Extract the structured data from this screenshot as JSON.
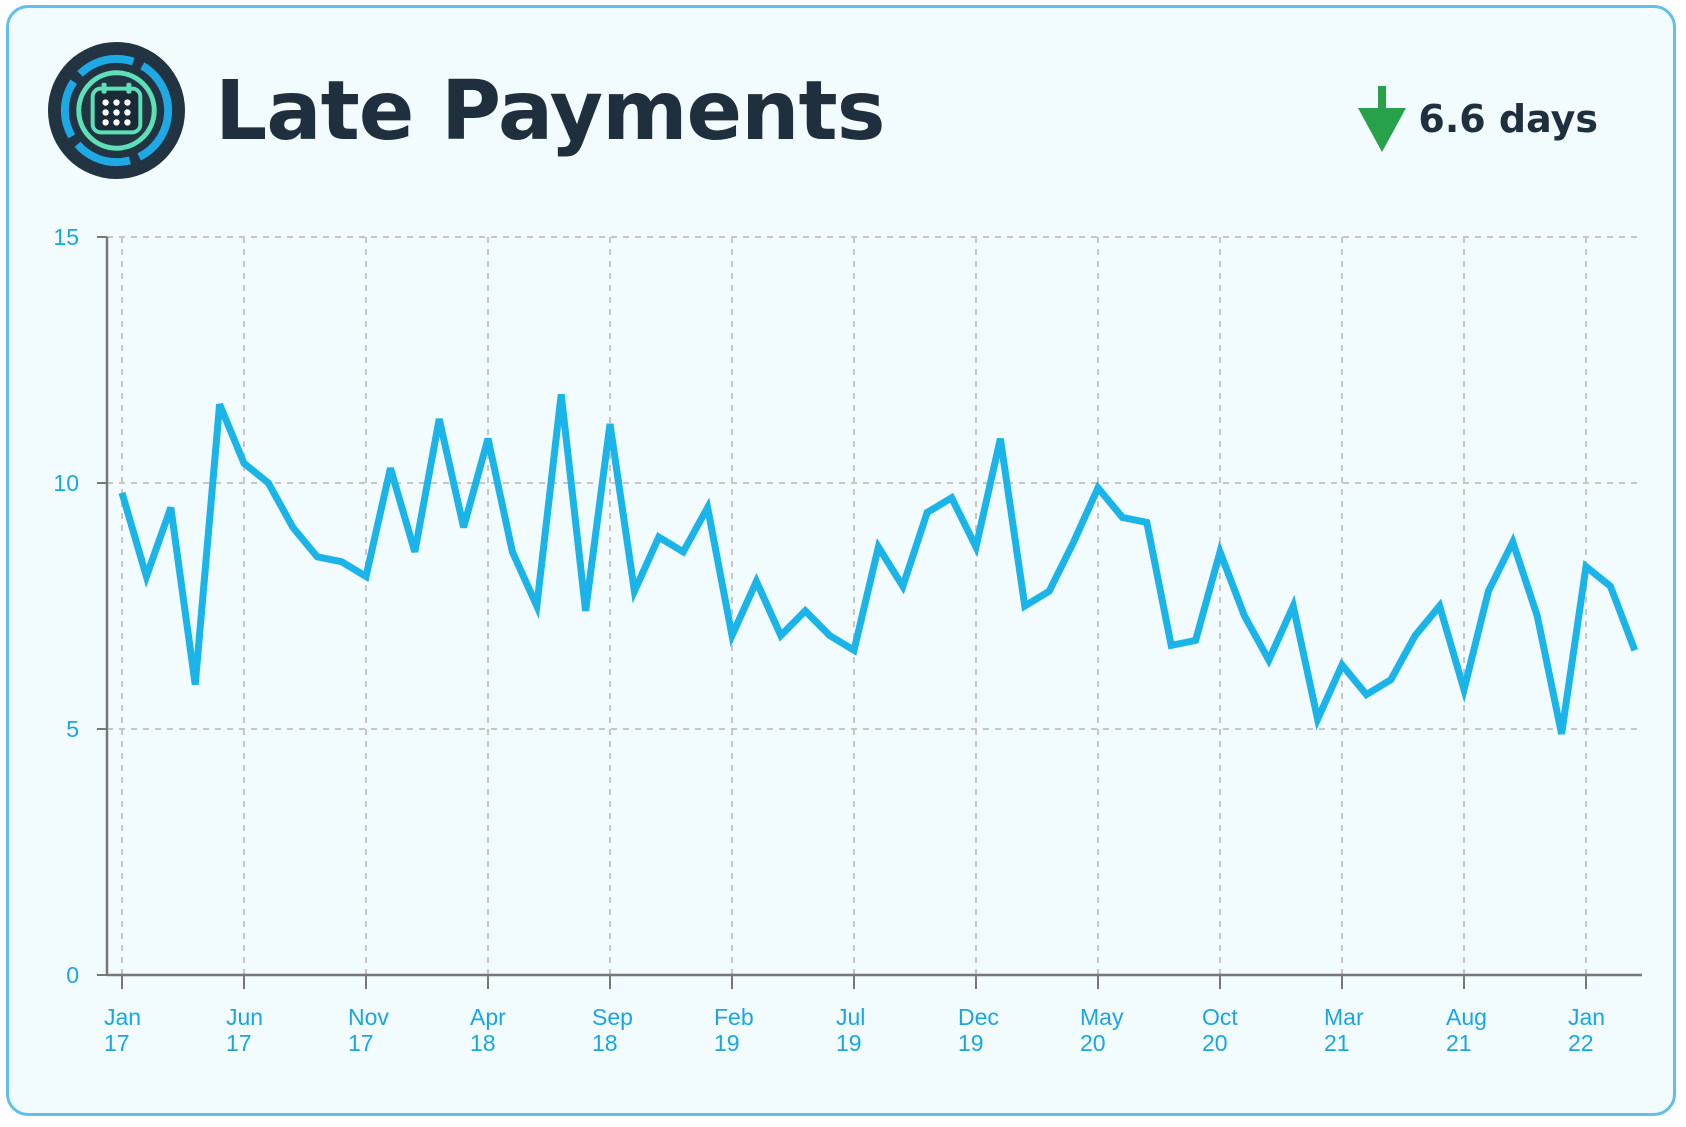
{
  "header": {
    "title": "Late Payments",
    "icon": "calendar-icon",
    "kpi": {
      "value": "6.6 days",
      "direction": "down",
      "icon": "arrow-down-icon"
    }
  },
  "colors": {
    "line": "#1bb4e8",
    "tick_text": "#1aa6e2",
    "title": "#1f2f3e",
    "kpi_arrow": "#27a24a",
    "card_border": "#5fc0ea",
    "card_bg": "#f2fcff",
    "grid": "#c6c6c6",
    "axis": "#777777"
  },
  "chart_data": {
    "type": "line",
    "title": "Late Payments",
    "xlabel": "",
    "ylabel": "",
    "ylim": [
      0,
      15
    ],
    "yticks": [
      0,
      5,
      10,
      15
    ],
    "grid": true,
    "legend": "none",
    "x_tick_labels": [
      {
        "month": "Jan",
        "year": "17"
      },
      {
        "month": "Jun",
        "year": "17"
      },
      {
        "month": "Nov",
        "year": "17"
      },
      {
        "month": "Apr",
        "year": "18"
      },
      {
        "month": "Sep",
        "year": "18"
      },
      {
        "month": "Feb",
        "year": "19"
      },
      {
        "month": "Jul",
        "year": "19"
      },
      {
        "month": "Dec",
        "year": "19"
      },
      {
        "month": "May",
        "year": "20"
      },
      {
        "month": "Oct",
        "year": "20"
      },
      {
        "month": "Mar",
        "year": "21"
      },
      {
        "month": "Aug",
        "year": "21"
      },
      {
        "month": "Jan",
        "year": "22"
      }
    ],
    "x": [
      "2017-01",
      "2017-02",
      "2017-03",
      "2017-04",
      "2017-05",
      "2017-06",
      "2017-07",
      "2017-08",
      "2017-09",
      "2017-10",
      "2017-11",
      "2017-12",
      "2018-01",
      "2018-02",
      "2018-03",
      "2018-04",
      "2018-05",
      "2018-06",
      "2018-07",
      "2018-08",
      "2018-09",
      "2018-10",
      "2018-11",
      "2018-12",
      "2019-01",
      "2019-02",
      "2019-03",
      "2019-04",
      "2019-05",
      "2019-06",
      "2019-07",
      "2019-08",
      "2019-09",
      "2019-10",
      "2019-11",
      "2019-12",
      "2020-01",
      "2020-02",
      "2020-03",
      "2020-04",
      "2020-05",
      "2020-06",
      "2020-07",
      "2020-08",
      "2020-09",
      "2020-10",
      "2020-11",
      "2020-12",
      "2021-01",
      "2021-02",
      "2021-03",
      "2021-04",
      "2021-05",
      "2021-06",
      "2021-07",
      "2021-08",
      "2021-09",
      "2021-10",
      "2021-11",
      "2021-12",
      "2022-01",
      "2022-02",
      "2022-03"
    ],
    "series": [
      {
        "values": [
          9.8,
          8.1,
          9.5,
          5.9,
          11.6,
          10.4,
          10.0,
          9.1,
          8.5,
          8.4,
          8.1,
          10.3,
          8.6,
          11.3,
          9.1,
          10.9,
          8.6,
          7.5,
          11.8,
          7.4,
          11.2,
          7.8,
          8.9,
          8.6,
          9.5,
          6.9,
          8.0,
          6.9,
          7.4,
          6.9,
          6.6,
          8.7,
          7.9,
          9.4,
          9.7,
          8.7,
          10.9,
          7.5,
          7.8,
          8.8,
          9.9,
          9.3,
          9.2,
          6.7,
          6.8,
          8.6,
          7.3,
          6.4,
          7.5,
          5.2,
          6.3,
          5.7,
          6.0,
          6.9,
          7.5,
          5.8,
          7.8,
          8.8,
          7.3,
          4.9,
          8.3,
          7.9,
          6.6
        ]
      }
    ]
  }
}
